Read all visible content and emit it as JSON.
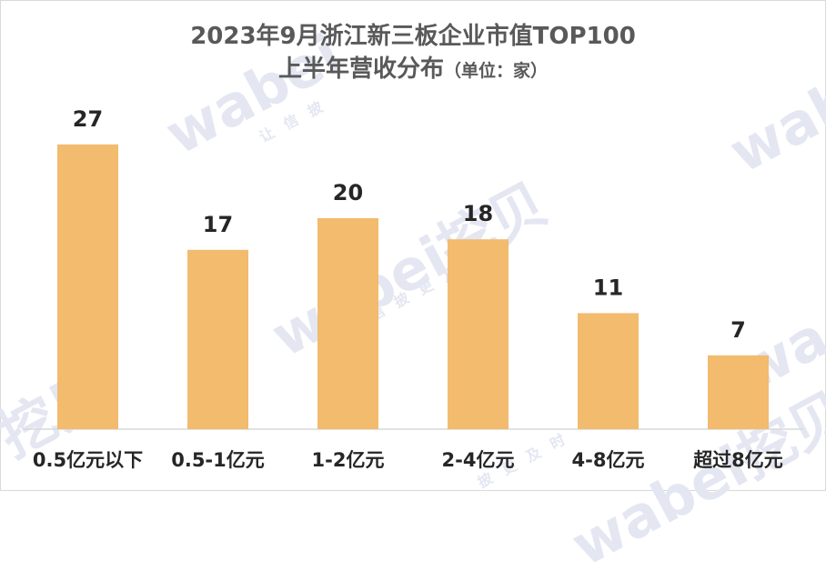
{
  "title_line1": "2023年9月浙江新三板企业市值TOP100",
  "title_line2": "上半年营收分布",
  "title_unit": "（单位：家）",
  "watermark": {
    "brand": "wabei挖贝",
    "slogan": "让信披更及时"
  },
  "colors": {
    "bar": "#f2bb6e",
    "axis": "#d9d9d9",
    "text": "#262626",
    "title": "#595959"
  },
  "chart_data": {
    "type": "bar",
    "title": "2023年9月浙江新三板企业市值TOP100 上半年营收分布（单位：家）",
    "categories": [
      "0.5亿元以下",
      "0.5-1亿元",
      "1-2亿元",
      "2-4亿元",
      "4-8亿元",
      "超过8亿元"
    ],
    "values": [
      27,
      17,
      20,
      18,
      11,
      7
    ],
    "xlabel": "",
    "ylabel": "",
    "grid": false,
    "legend": "none",
    "data_labels": true
  }
}
